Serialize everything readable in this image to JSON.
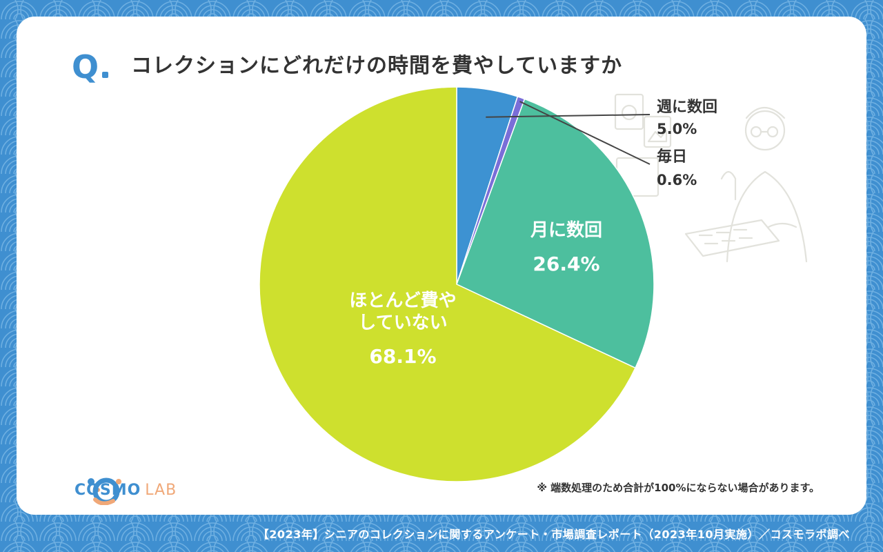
{
  "header": {
    "q_label": "Q",
    "title": "コレクションにどれだけの時間を費やしていますか"
  },
  "chart_data": {
    "type": "pie",
    "title": "コレクションにどれだけの時間を費やしていますか",
    "start_angle_deg": 0,
    "direction": "clockwise",
    "slices": [
      {
        "label": "週に数回",
        "value": 5.0,
        "display": "5.0%",
        "color": "#3d92d2",
        "label_position": "outside"
      },
      {
        "label": "毎日",
        "value": 0.6,
        "display": "0.6%",
        "color": "#7a6ed8",
        "label_position": "outside"
      },
      {
        "label": "月に数回",
        "value": 26.4,
        "display": "26.4%",
        "color": "#4dbf9e",
        "label_position": "inside"
      },
      {
        "label": "ほとんど費やしていない",
        "label_lines": [
          "ほとんど費や",
          "していない"
        ],
        "value": 68.1,
        "display": "68.1%",
        "color": "#cee02e",
        "label_position": "inside"
      }
    ]
  },
  "note": "※ 端数処理のため合計が100%にならない場合があります。",
  "logo": {
    "main": "COSMO",
    "sub": "LAB",
    "icon": "cosmo-lab-logo-icon"
  },
  "footer": "【2023年】シニアのコレクションに関するアンケート・市場調査レポート（2023年10月実施）／コスモラボ調べ",
  "colors": {
    "background": "#3f8fd0",
    "card": "#ffffff",
    "accent": "#3f8fd0",
    "text": "#333333"
  }
}
